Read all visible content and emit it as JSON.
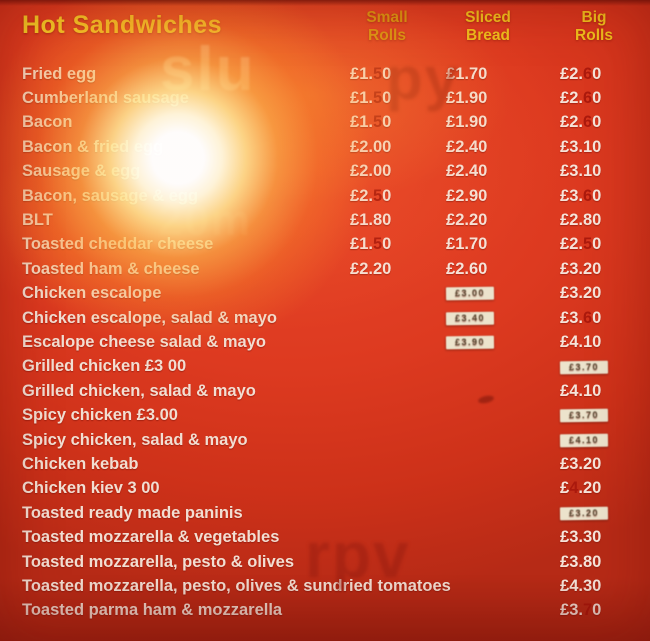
{
  "header": {
    "title": "Hot Sandwiches",
    "columns": [
      {
        "line1": "Small",
        "line2": "Rolls"
      },
      {
        "line1": "Sliced",
        "line2": "Bread"
      },
      {
        "line1": "Big",
        "line2": "Rolls"
      }
    ]
  },
  "menu": {
    "rows": [
      {
        "name": "Fried egg",
        "small": {
          "text": "£1.50",
          "red": [
            3
          ]
        },
        "sliced": {
          "text": "£1.70"
        },
        "big": {
          "text": "£2.60",
          "red": [
            3
          ]
        }
      },
      {
        "name": "Cumberland sausage",
        "small": {
          "text": "£1.50",
          "red": [
            3
          ]
        },
        "sliced": {
          "text": "£1.90"
        },
        "big": {
          "text": "£2.60",
          "red": [
            3
          ]
        }
      },
      {
        "name": "Bacon",
        "small": {
          "text": "£1.50",
          "red": [
            3
          ]
        },
        "sliced": {
          "text": "£1.90"
        },
        "big": {
          "text": "£2.60",
          "red": [
            3
          ]
        }
      },
      {
        "name": "Bacon & fried egg",
        "small": {
          "text": "£2.00"
        },
        "sliced": {
          "text": "£2.40"
        },
        "big": {
          "text": "£3.10"
        }
      },
      {
        "name": "Sausage & egg",
        "small": {
          "text": "£2.00"
        },
        "sliced": {
          "text": "£2.40"
        },
        "big": {
          "text": "£3.10"
        }
      },
      {
        "name": "Bacon, sausage & egg",
        "small": {
          "text": "£2.50",
          "red": [
            3
          ]
        },
        "sliced": {
          "text": "£2.90"
        },
        "big": {
          "text": "£3.60",
          "red": [
            3
          ]
        }
      },
      {
        "name": "BLT",
        "small": {
          "text": "£1.80"
        },
        "sliced": {
          "text": "£2.20"
        },
        "big": {
          "text": "£2.80"
        }
      },
      {
        "name": "Toasted cheddar cheese",
        "small": {
          "text": "£1.50",
          "red": [
            3
          ]
        },
        "sliced": {
          "text": "£1.70"
        },
        "big": {
          "text": "£2.50",
          "red": [
            3
          ]
        }
      },
      {
        "name": "Toasted ham & cheese",
        "small": {
          "text": "£2.20"
        },
        "sliced": {
          "text": "£2.60"
        },
        "big": {
          "text": "£3.20"
        }
      },
      {
        "name": "Chicken escalope",
        "small": null,
        "sliced": {
          "text": "£3.00",
          "sticker": true
        },
        "big": {
          "text": "£3.20"
        }
      },
      {
        "name": "Chicken escalope, salad & mayo",
        "small": null,
        "sliced": {
          "text": "£3.40",
          "sticker": true
        },
        "big": {
          "text": "£3.60",
          "red": [
            3
          ]
        }
      },
      {
        "name": "Escalope cheese salad & mayo",
        "small": null,
        "sliced": {
          "text": "£3.90",
          "sticker": true
        },
        "big": {
          "text": "£4.10"
        }
      },
      {
        "name": "Grilled chicken  £3 00",
        "small": null,
        "sliced": null,
        "big": {
          "text": "£3.70",
          "sticker": true
        }
      },
      {
        "name": "Grilled chicken, salad & mayo",
        "small": null,
        "sliced": null,
        "big": {
          "text": "£4.10"
        }
      },
      {
        "name": "Spicy chicken  £3.00",
        "small": null,
        "sliced": null,
        "big": {
          "text": "£3.70",
          "sticker": true
        }
      },
      {
        "name": "Spicy chicken, salad & mayo",
        "small": null,
        "sliced": null,
        "big": {
          "text": "£4.10",
          "sticker": true
        }
      },
      {
        "name": "Chicken kebab",
        "small": null,
        "sliced": null,
        "big": {
          "text": "£3.20"
        }
      },
      {
        "name": "Chicken kiev    3 00",
        "small": null,
        "sliced": null,
        "big": {
          "text": "£4.20",
          "red": [
            1
          ]
        }
      },
      {
        "name": "Toasted ready made paninis",
        "small": null,
        "sliced": null,
        "big": {
          "text": "£3.20",
          "sticker": true
        }
      },
      {
        "name": "Toasted mozzarella & vegetables",
        "small": null,
        "sliced": null,
        "big": {
          "text": "£3.30"
        }
      },
      {
        "name": "Toasted mozzarella, pesto & olives",
        "small": null,
        "sliced": null,
        "big": {
          "text": "£3.80"
        }
      },
      {
        "name": "Toasted mozzarella, pesto, olives & sundried tomatoes",
        "small": null,
        "sliced": null,
        "big": {
          "text": "£4.30"
        }
      },
      {
        "name": "Toasted parma ham & mozzarella",
        "small": null,
        "sliced": null,
        "big": {
          "text": "£3.70",
          "red": [
            3
          ]
        }
      }
    ]
  },
  "watermarks": {
    "top_left": "slu",
    "top_right": "py",
    "mid": "20m",
    "bottom": "rpv"
  },
  "colors": {
    "background_red": "#dd3a20",
    "accent_yellow": "#f0c01c",
    "dim_yellow": "#d8940e",
    "text_white": "#f2ded2",
    "red_marker": "#a8170c",
    "sticker_bg": "#ece3cc"
  }
}
